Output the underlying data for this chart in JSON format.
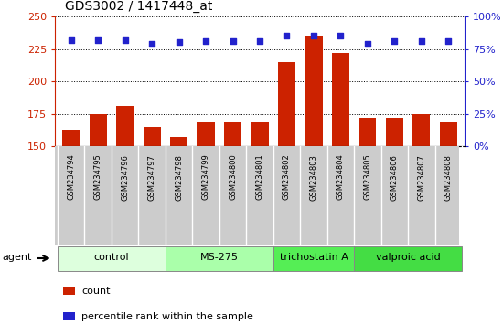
{
  "title": "GDS3002 / 1417448_at",
  "samples": [
    "GSM234794",
    "GSM234795",
    "GSM234796",
    "GSM234797",
    "GSM234798",
    "GSM234799",
    "GSM234800",
    "GSM234801",
    "GSM234802",
    "GSM234803",
    "GSM234804",
    "GSM234805",
    "GSM234806",
    "GSM234807",
    "GSM234808"
  ],
  "counts": [
    162,
    175,
    181,
    165,
    157,
    168,
    168,
    168,
    215,
    235,
    222,
    172,
    172,
    175,
    168
  ],
  "percentile_ranks": [
    82,
    82,
    82,
    79,
    80,
    81,
    81,
    81,
    85,
    85,
    85,
    79,
    81,
    81,
    81
  ],
  "ylim_left": [
    150,
    250
  ],
  "ylim_right": [
    0,
    100
  ],
  "yticks_left": [
    150,
    175,
    200,
    225,
    250
  ],
  "yticks_right": [
    0,
    25,
    50,
    75,
    100
  ],
  "bar_color": "#cc2200",
  "dot_color": "#2222cc",
  "groups": [
    {
      "label": "control",
      "start": 0,
      "end": 3,
      "color": "#ddffdd"
    },
    {
      "label": "MS-275",
      "start": 4,
      "end": 7,
      "color": "#aaffaa"
    },
    {
      "label": "trichostatin A",
      "start": 8,
      "end": 10,
      "color": "#55ee55"
    },
    {
      "label": "valproic acid",
      "start": 11,
      "end": 14,
      "color": "#44dd44"
    }
  ],
  "agent_label": "agent",
  "legend_count_label": "count",
  "legend_pct_label": "percentile rank within the sample",
  "sample_label_bg": "#cccccc",
  "group_border_color": "#888888"
}
